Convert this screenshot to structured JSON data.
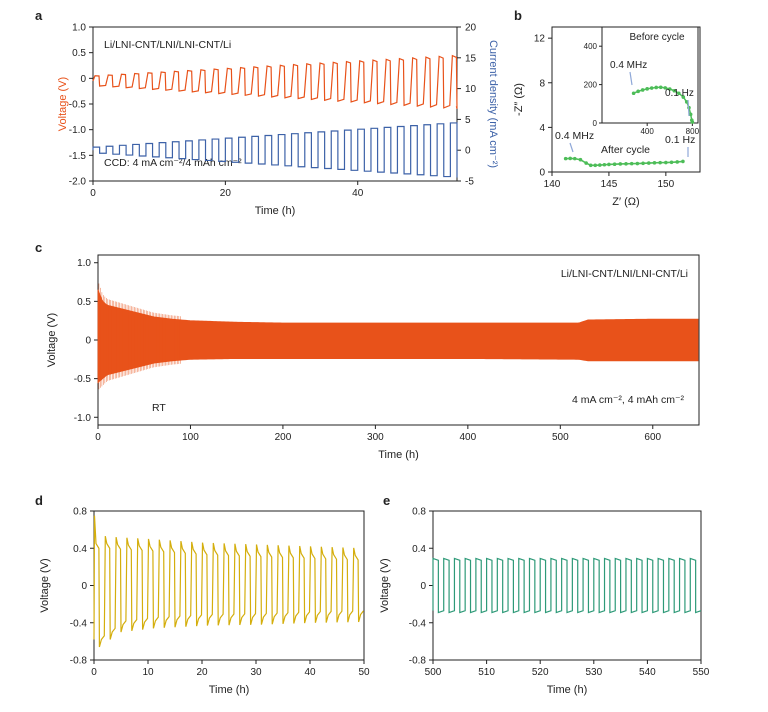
{
  "colors": {
    "orange": "#E8521A",
    "blue": "#3D62A8",
    "green": "#4DBD58",
    "yellow": "#D4AE0C",
    "teal": "#2E9A78",
    "arrow": "#8FA8D8",
    "axis": "#222222"
  },
  "panel_labels": {
    "a": "a",
    "b": "b",
    "c": "c",
    "d": "d",
    "e": "e"
  },
  "chart_data": [
    {
      "id": "a",
      "type": "line",
      "title": "Li/LNI-CNT/LNI/LNI-CNT/Li",
      "annotation": "CCD: 4 mA cm⁻²/4 mAh cm⁻²",
      "xlabel": "Time (h)",
      "ylabel": "Voltage (V)",
      "y2label": "Current density (mA cm⁻²)",
      "xlim": [
        0,
        55
      ],
      "ylim": [
        -2.0,
        1.0
      ],
      "y2lim": [
        -5,
        20
      ],
      "xticks": [
        "0",
        "20",
        "40"
      ],
      "xtick_values": [
        0,
        20,
        40
      ],
      "yticks": [
        "1.0",
        "0.5",
        "0",
        "-0.5",
        "-1.0",
        "-1.5",
        "-2.0"
      ],
      "ytick_values": [
        1.0,
        0.5,
        0,
        -0.5,
        -1.0,
        -1.5,
        -2.0
      ],
      "y2ticks": [
        "20",
        "15",
        "10",
        "5",
        "0",
        "-5"
      ],
      "y2tick_values": [
        20,
        15,
        10,
        5,
        0,
        -5
      ],
      "series": [
        {
          "name": "Voltage",
          "axis": "left",
          "cycle_h": 2,
          "t_end": 55,
          "positive_start": 0.05,
          "positive_end": 0.45,
          "negative_start": -0.15,
          "negative_end": -0.6
        },
        {
          "name": "Current density",
          "axis": "right",
          "cycle_h": 2,
          "t_end": 55,
          "amplitude_start": 0.5,
          "amplitude_end": 4.5
        }
      ]
    },
    {
      "id": "b",
      "type": "scatter",
      "xlabel": "Z′ (Ω)",
      "ylabel": "-Z″ (Ω)",
      "xlim": [
        140,
        153
      ],
      "ylim": [
        0,
        13
      ],
      "xticks": [
        "140",
        "145",
        "150"
      ],
      "xtick_values": [
        140,
        145,
        150
      ],
      "yticks": [
        "0",
        "4",
        "8",
        "12"
      ],
      "ytick_values": [
        0,
        4,
        8,
        12
      ],
      "labels": {
        "after": "After cycle",
        "high_freq": "0.4 MHz",
        "low_freq": "0.1 Hz"
      },
      "series": [
        {
          "name": "After cycle",
          "points": [
            [
              141.2,
              1.2
            ],
            [
              141.6,
              1.22
            ],
            [
              142.0,
              1.2
            ],
            [
              142.5,
              1.1
            ],
            [
              143.0,
              0.8
            ],
            [
              143.4,
              0.6
            ],
            [
              143.8,
              0.6
            ],
            [
              144.2,
              0.62
            ],
            [
              144.6,
              0.65
            ],
            [
              145.0,
              0.68
            ],
            [
              145.5,
              0.7
            ],
            [
              146.0,
              0.72
            ],
            [
              146.5,
              0.73
            ],
            [
              147.0,
              0.75
            ],
            [
              147.5,
              0.76
            ],
            [
              148.0,
              0.78
            ],
            [
              148.5,
              0.8
            ],
            [
              149.0,
              0.82
            ],
            [
              149.5,
              0.84
            ],
            [
              150.0,
              0.85
            ],
            [
              150.5,
              0.87
            ],
            [
              151.0,
              0.9
            ],
            [
              151.5,
              0.95
            ]
          ]
        }
      ],
      "inset": {
        "title": "Before cycle",
        "xlim": [
          0,
          850
        ],
        "ylim": [
          0,
          500
        ],
        "xticks": [
          "400",
          "800"
        ],
        "xtick_values": [
          400,
          800
        ],
        "yticks": [
          "0",
          "200",
          "400"
        ],
        "ytick_values": [
          0,
          200,
          400
        ],
        "labels": {
          "high_freq": "0.4 MHz",
          "low_freq": "0.1 Hz"
        },
        "points": [
          [
            280,
            155
          ],
          [
            320,
            165
          ],
          [
            360,
            172
          ],
          [
            400,
            178
          ],
          [
            440,
            182
          ],
          [
            480,
            185
          ],
          [
            520,
            186
          ],
          [
            560,
            183
          ],
          [
            600,
            177
          ],
          [
            640,
            168
          ],
          [
            680,
            155
          ],
          [
            720,
            135
          ],
          [
            750,
            110
          ],
          [
            770,
            80
          ],
          [
            785,
            45
          ],
          [
            795,
            15
          ],
          [
            800,
            5
          ]
        ]
      }
    },
    {
      "id": "c",
      "type": "line",
      "title": "Li/LNI-CNT/LNI/LNI-CNT/Li",
      "annotations": [
        "RT",
        "4 mA cm⁻²,   4 mAh cm⁻²"
      ],
      "xlabel": "Time (h)",
      "ylabel": "Voltage (V)",
      "xlim": [
        0,
        650
      ],
      "ylim": [
        -1.1,
        1.1
      ],
      "xticks": [
        "0",
        "100",
        "200",
        "300",
        "400",
        "500",
        "600"
      ],
      "xtick_values": [
        0,
        100,
        200,
        300,
        400,
        500,
        600
      ],
      "yticks": [
        "1.0",
        "0.5",
        "0",
        "-0.5",
        "-1.0"
      ],
      "ytick_values": [
        1.0,
        0.5,
        0,
        -0.5,
        -1.0
      ],
      "envelope": {
        "t": [
          0,
          5,
          10,
          20,
          40,
          60,
          80,
          100,
          150,
          200,
          300,
          400,
          520,
          530,
          600,
          650
        ],
        "upper": [
          0.65,
          0.5,
          0.45,
          0.42,
          0.36,
          0.3,
          0.27,
          0.25,
          0.23,
          0.22,
          0.22,
          0.22,
          0.22,
          0.26,
          0.27,
          0.27
        ],
        "lower": [
          -0.55,
          -0.5,
          -0.45,
          -0.42,
          -0.36,
          -0.3,
          -0.27,
          -0.25,
          -0.24,
          -0.24,
          -0.24,
          -0.24,
          -0.25,
          -0.27,
          -0.27,
          -0.27
        ]
      }
    },
    {
      "id": "d",
      "type": "line",
      "xlabel": "Time (h)",
      "ylabel": "Voltage (V)",
      "xlim": [
        0,
        50
      ],
      "ylim": [
        -0.8,
        0.8
      ],
      "xticks": [
        "0",
        "10",
        "20",
        "30",
        "40",
        "50"
      ],
      "xtick_values": [
        0,
        10,
        20,
        30,
        40,
        50
      ],
      "yticks": [
        "0.8",
        "0.4",
        "0",
        "-0.4",
        "-0.8"
      ],
      "ytick_values": [
        0.8,
        0.4,
        0,
        -0.4,
        -0.8
      ],
      "cycle_h": 2,
      "upper": {
        "t": [
          0,
          2,
          4,
          10,
          20,
          30,
          40,
          50
        ],
        "v": [
          0.45,
          0.45,
          0.44,
          0.42,
          0.38,
          0.36,
          0.34,
          0.32
        ]
      },
      "lower": {
        "t": [
          0,
          2,
          4,
          10,
          20,
          30,
          40,
          50
        ],
        "v": [
          -0.58,
          -0.5,
          -0.42,
          -0.38,
          -0.35,
          -0.34,
          -0.32,
          -0.31
        ]
      },
      "spike_start": 0.75
    },
    {
      "id": "e",
      "type": "line",
      "xlabel": "Time (h)",
      "ylabel": "Voltage (V)",
      "xlim": [
        500,
        550
      ],
      "ylim": [
        -0.8,
        0.8
      ],
      "xticks": [
        "500",
        "510",
        "520",
        "530",
        "540",
        "550"
      ],
      "xtick_values": [
        500,
        510,
        520,
        530,
        540,
        550
      ],
      "yticks": [
        "0.8",
        "0.4",
        "0",
        "-0.4",
        "-0.8"
      ],
      "ytick_values": [
        0.8,
        0.4,
        0,
        -0.4,
        -0.8
      ],
      "cycle_h": 2,
      "upper_v": 0.27,
      "lower_v": -0.27
    }
  ]
}
